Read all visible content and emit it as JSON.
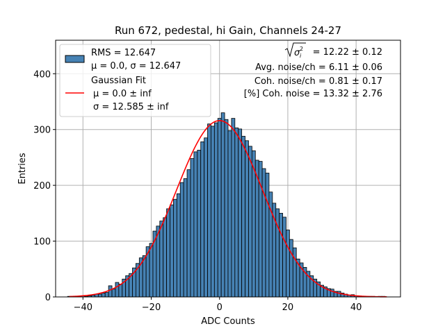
{
  "chart_data": {
    "type": "bar",
    "title": "Run 672, pedestal, hi Gain, Channels 24-27",
    "xlabel": "ADC Counts",
    "ylabel": "Entries",
    "xlim": [
      -48,
      53
    ],
    "ylim": [
      0,
      460
    ],
    "xticks": [
      -40,
      -20,
      0,
      20,
      40
    ],
    "xtick_labels": [
      "−40",
      "−20",
      "0",
      "20",
      "40"
    ],
    "yticks": [
      0,
      100,
      200,
      300,
      400
    ],
    "ytick_labels": [
      "0",
      "100",
      "200",
      "300",
      "400"
    ],
    "grid": true,
    "bin_width": 1,
    "bins": [
      {
        "x": -44,
        "count": 1
      },
      {
        "x": -43,
        "count": 1
      },
      {
        "x": -42,
        "count": 1
      },
      {
        "x": -41,
        "count": 1
      },
      {
        "x": -40,
        "count": 2
      },
      {
        "x": -39,
        "count": 1
      },
      {
        "x": -38,
        "count": 2
      },
      {
        "x": -37,
        "count": 3
      },
      {
        "x": -36,
        "count": 5
      },
      {
        "x": -35,
        "count": 5
      },
      {
        "x": -34,
        "count": 7
      },
      {
        "x": -33,
        "count": 8
      },
      {
        "x": -32,
        "count": 20
      },
      {
        "x": -31,
        "count": 14
      },
      {
        "x": -30,
        "count": 26
      },
      {
        "x": -29,
        "count": 23
      },
      {
        "x": -28,
        "count": 32
      },
      {
        "x": -27,
        "count": 38
      },
      {
        "x": -26,
        "count": 42
      },
      {
        "x": -25,
        "count": 52
      },
      {
        "x": -24,
        "count": 60
      },
      {
        "x": -23,
        "count": 70
      },
      {
        "x": -22,
        "count": 74
      },
      {
        "x": -21,
        "count": 90
      },
      {
        "x": -20,
        "count": 96
      },
      {
        "x": -19,
        "count": 118
      },
      {
        "x": -18,
        "count": 127
      },
      {
        "x": -17,
        "count": 136
      },
      {
        "x": -16,
        "count": 142
      },
      {
        "x": -15,
        "count": 158
      },
      {
        "x": -14,
        "count": 165
      },
      {
        "x": -13,
        "count": 175
      },
      {
        "x": -12,
        "count": 185
      },
      {
        "x": -11,
        "count": 205
      },
      {
        "x": -10,
        "count": 212
      },
      {
        "x": -9,
        "count": 228
      },
      {
        "x": -8,
        "count": 248
      },
      {
        "x": -7,
        "count": 260
      },
      {
        "x": -6,
        "count": 263
      },
      {
        "x": -5,
        "count": 278
      },
      {
        "x": -4,
        "count": 285
      },
      {
        "x": -3,
        "count": 310
      },
      {
        "x": -2,
        "count": 306
      },
      {
        "x": -1,
        "count": 312
      },
      {
        "x": 0,
        "count": 320
      },
      {
        "x": 1,
        "count": 330
      },
      {
        "x": 2,
        "count": 318
      },
      {
        "x": 3,
        "count": 298
      },
      {
        "x": 4,
        "count": 320
      },
      {
        "x": 5,
        "count": 303
      },
      {
        "x": 6,
        "count": 301
      },
      {
        "x": 7,
        "count": 288
      },
      {
        "x": 8,
        "count": 280
      },
      {
        "x": 9,
        "count": 270
      },
      {
        "x": 10,
        "count": 262
      },
      {
        "x": 11,
        "count": 245
      },
      {
        "x": 12,
        "count": 243
      },
      {
        "x": 13,
        "count": 230
      },
      {
        "x": 14,
        "count": 222
      },
      {
        "x": 15,
        "count": 188
      },
      {
        "x": 16,
        "count": 168
      },
      {
        "x": 17,
        "count": 158
      },
      {
        "x": 18,
        "count": 150
      },
      {
        "x": 19,
        "count": 143
      },
      {
        "x": 20,
        "count": 120
      },
      {
        "x": 21,
        "count": 103
      },
      {
        "x": 22,
        "count": 88
      },
      {
        "x": 23,
        "count": 68
      },
      {
        "x": 24,
        "count": 61
      },
      {
        "x": 25,
        "count": 53
      },
      {
        "x": 26,
        "count": 46
      },
      {
        "x": 27,
        "count": 38
      },
      {
        "x": 28,
        "count": 32
      },
      {
        "x": 29,
        "count": 27
      },
      {
        "x": 30,
        "count": 21
      },
      {
        "x": 31,
        "count": 18
      },
      {
        "x": 32,
        "count": 15
      },
      {
        "x": 33,
        "count": 14
      },
      {
        "x": 34,
        "count": 10
      },
      {
        "x": 35,
        "count": 10
      },
      {
        "x": 36,
        "count": 7
      },
      {
        "x": 37,
        "count": 5
      },
      {
        "x": 38,
        "count": 3
      },
      {
        "x": 39,
        "count": 4
      },
      {
        "x": 40,
        "count": 2
      },
      {
        "x": 41,
        "count": 2
      },
      {
        "x": 42,
        "count": 1
      },
      {
        "x": 43,
        "count": 1
      },
      {
        "x": 44,
        "count": 1
      },
      {
        "x": 45,
        "count": 1
      },
      {
        "x": 46,
        "count": 0
      },
      {
        "x": 47,
        "count": 1
      },
      {
        "x": 48,
        "count": 1
      }
    ],
    "fit": {
      "amplitude": 316,
      "mean": 0.0,
      "sigma": 12.585,
      "x_range": [
        -44,
        49
      ]
    },
    "legend": {
      "placement": "upper-left",
      "entries": [
        {
          "label_line1": "RMS = 12.647",
          "label_line2": "μ = 0.0, σ = 12.647"
        },
        {
          "label_line1": "Gaussian Fit",
          "label_line2": "μ = 0.0 ± inf",
          "label_line3": "σ = 12.585 ± inf"
        }
      ]
    },
    "stats": {
      "total_noise": "= 12.22 ± 0.12",
      "avg_noise": "Avg. noise/ch = 6.11 ± 0.06",
      "coh_noise": "Coh. noise/ch = 0.81 ± 0.17",
      "coh_percent": "[%] Coh. noise = 13.32 ± 2.76"
    },
    "colors": {
      "bar_fill": "#4682b4",
      "bar_edge": "#000000",
      "fit_line": "#ff0000",
      "grid": "#b0b0b0"
    }
  }
}
